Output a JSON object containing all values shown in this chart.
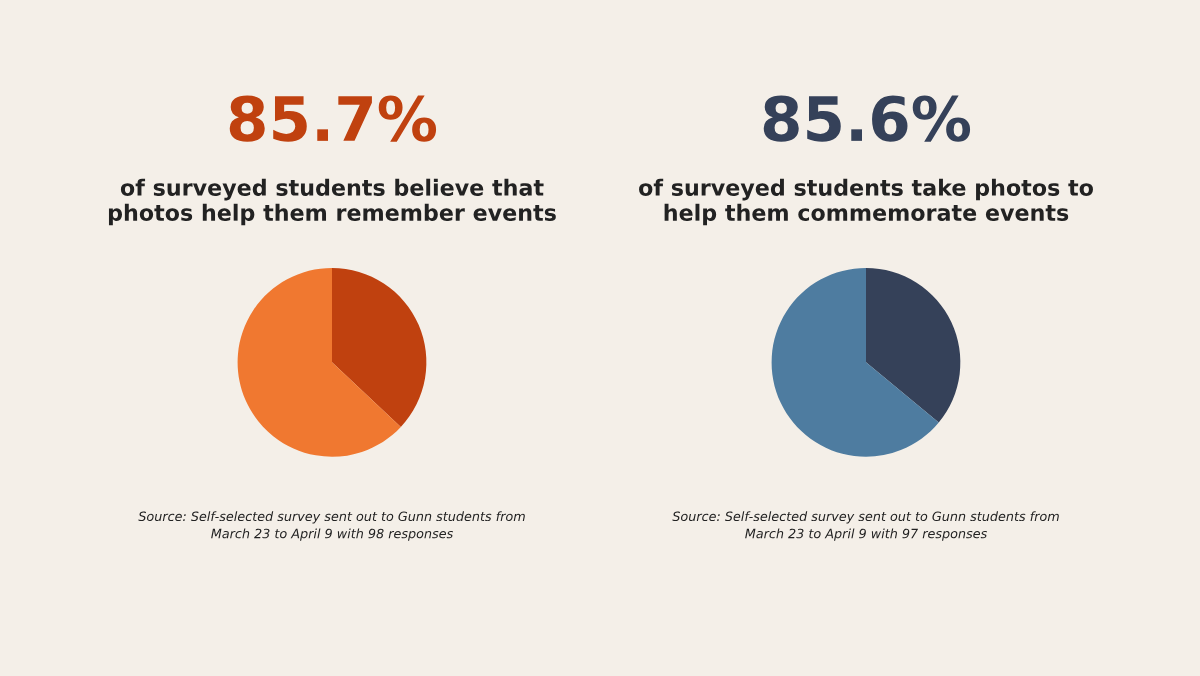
{
  "chart_data": [
    {
      "type": "pie",
      "title": "85.7%",
      "subtitle": "of surveyed students believe that\nphotos help them remember events",
      "categories": [
        null,
        null
      ],
      "values": [
        37,
        63
      ],
      "colors": [
        "#c0410f",
        "#f07830"
      ],
      "annotations": [
        "Source: Self-selected survey sent out to Gunn students from\nMarch 23 to April 9 with 98 responses"
      ]
    },
    {
      "type": "pie",
      "title": "85.6%",
      "subtitle": "of surveyed students take photos to\nhelp them commemorate events",
      "categories": [
        null,
        null
      ],
      "values": [
        36,
        64
      ],
      "colors": [
        "#354159",
        "#4e7ca0"
      ],
      "annotations": [
        "Source: Self-selected survey sent out to Gunn students from\nMarch 23 to April 9 with 97 responses"
      ]
    }
  ]
}
